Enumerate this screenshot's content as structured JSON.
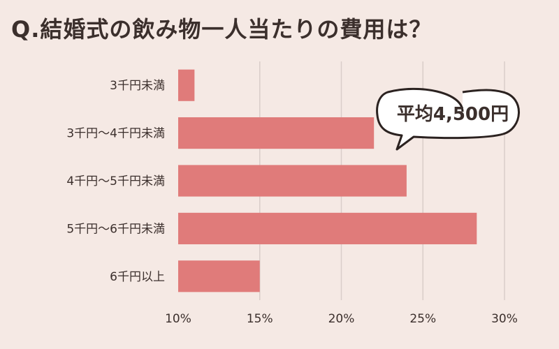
{
  "title": "Q.結婚式の飲み物一人当たりの費用は？",
  "callout": "平均4,500円",
  "colors": {
    "background": "#f5e9e4",
    "bar": "#e07b7a",
    "grid": "#d9cdc9",
    "text": "#3b2f2c"
  },
  "chart_data": {
    "type": "bar",
    "orientation": "horizontal",
    "title": "Q.結婚式の飲み物一人当たりの費用は？",
    "categories": [
      "3千円未満",
      "3千円〜4千円未満",
      "4千円〜5千円未満",
      "5千円〜6千円未満",
      "6千円以上"
    ],
    "values": [
      11,
      22,
      24,
      28.3,
      15
    ],
    "xlim": [
      10,
      30
    ],
    "xticks": [
      10,
      15,
      20,
      25,
      30
    ],
    "xtick_labels": [
      "10%",
      "15%",
      "20%",
      "25%",
      "30%"
    ],
    "grid": true,
    "annotation": "平均4,500円"
  }
}
